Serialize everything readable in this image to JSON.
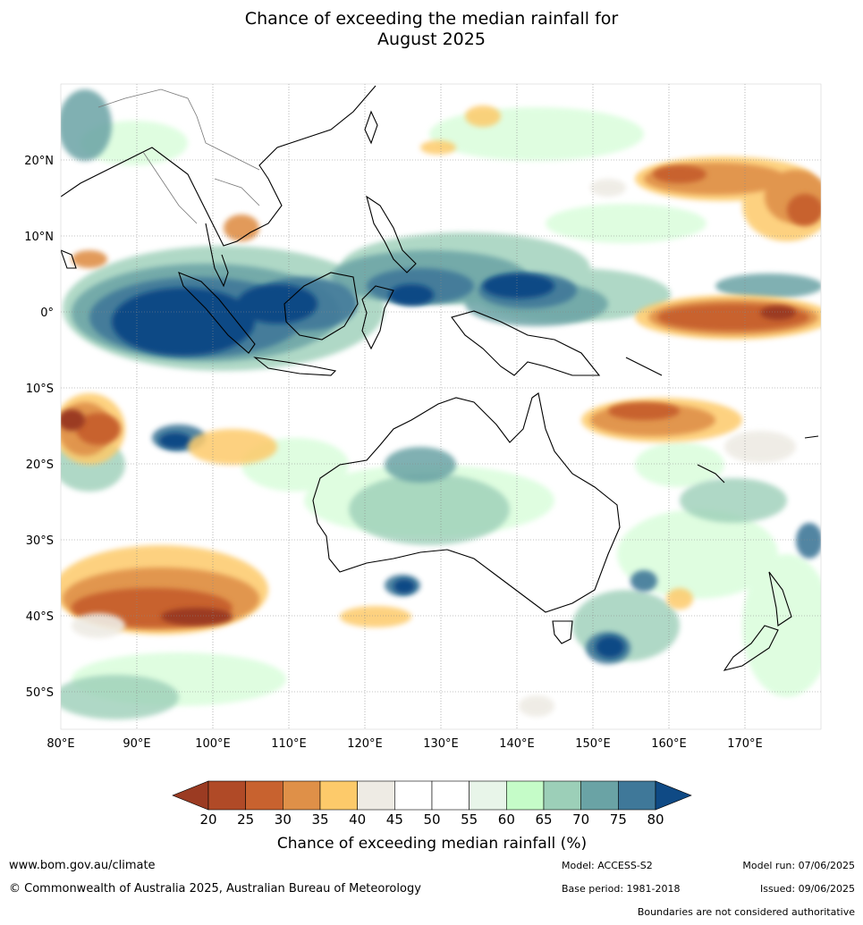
{
  "title": {
    "line1": "Chance of exceeding the median rainfall for",
    "line2": "August 2025"
  },
  "axes": {
    "lon_labels": [
      "80°E",
      "90°E",
      "100°E",
      "110°E",
      "120°E",
      "130°E",
      "140°E",
      "150°E",
      "160°E",
      "170°E"
    ],
    "lat_labels": [
      "20°N",
      "10°N",
      "0°",
      "10°S",
      "20°S",
      "30°S",
      "40°S",
      "50°S"
    ],
    "lon_range": [
      80,
      180
    ],
    "lat_range": [
      -55,
      30
    ]
  },
  "colorbar": {
    "title": "Chance of exceeding median rainfall (%)",
    "ticks": [
      "20",
      "25",
      "30",
      "35",
      "40",
      "45",
      "50",
      "55",
      "60",
      "65",
      "70",
      "75",
      "80"
    ],
    "colors": [
      "#9b3b22",
      "#b04a27",
      "#c8622f",
      "#df9048",
      "#fdca6a",
      "#eeebe4",
      "#ffffff",
      "#ffffff",
      "#e8f5e9",
      "#c5fcc8",
      "#9ccfb8",
      "#6aa3a5",
      "#3f7899",
      "#0f4a85"
    ]
  },
  "footer": {
    "website": "www.bom.gov.au/climate",
    "copyright": "© Commonwealth of Australia 2025, Australian Bureau of Meteorology",
    "model": "Model: ACCESS-S2",
    "model_run": "Model run: 07/06/2025",
    "base_period": "Base period: 1981-2018",
    "issued": "Issued: 09/06/2025",
    "boundaries_note": "Boundaries are not considered authoritative"
  }
}
